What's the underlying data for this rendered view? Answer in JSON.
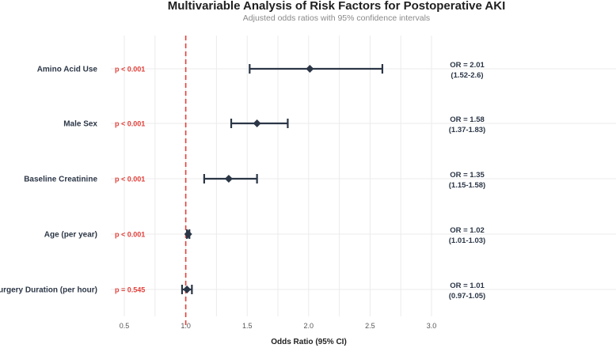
{
  "chart_data": {
    "type": "forest",
    "title": "Multivariable Analysis of Risk Factors for Postoperative AKI",
    "subtitle": "Adjusted odds ratios with 95% confidence intervals",
    "xlabel": "Odds Ratio (95% CI)",
    "xlim": [
      0.5,
      3.0
    ],
    "xticks": [
      "0.5",
      "1.0",
      "1.5",
      "2.0",
      "2.5",
      "3.0"
    ],
    "reference_line": 1.0,
    "grid": true,
    "rows": [
      {
        "label": "Amino Acid Use",
        "or": 2.01,
        "lower": 1.52,
        "upper": 2.6,
        "p": "p < 0.001",
        "or_text": "OR = 2.01",
        "ci_text": "(1.52-2.6)"
      },
      {
        "label": "Male Sex",
        "or": 1.58,
        "lower": 1.37,
        "upper": 1.83,
        "p": "p < 0.001",
        "or_text": "OR = 1.58",
        "ci_text": "(1.37-1.83)"
      },
      {
        "label": "Baseline Creatinine",
        "or": 1.35,
        "lower": 1.15,
        "upper": 1.58,
        "p": "p < 0.001",
        "or_text": "OR = 1.35",
        "ci_text": "(1.15-1.58)"
      },
      {
        "label": "Age (per year)",
        "or": 1.02,
        "lower": 1.01,
        "upper": 1.03,
        "p": "p < 0.001",
        "or_text": "OR = 1.02",
        "ci_text": "(1.01-1.03)"
      },
      {
        "label": "Surgery Duration (per hour)",
        "or": 1.01,
        "lower": 0.97,
        "upper": 1.05,
        "p": "p = 0.545",
        "or_text": "OR = 1.01",
        "ci_text": "(0.97-1.05)"
      }
    ],
    "colors": {
      "marker": "#2b3646",
      "reference": "#e3403a",
      "pvalue": "#e3403a",
      "grid": "#ebebeb"
    }
  }
}
